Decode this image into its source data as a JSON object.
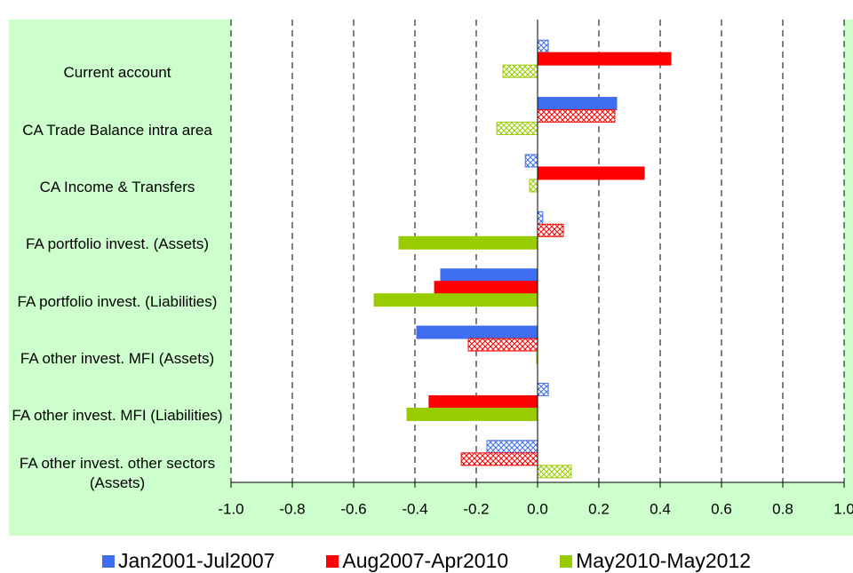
{
  "chart_data": {
    "type": "hbar",
    "categories": [
      "Current account",
      "CA Trade Balance intra area",
      "CA Income & Transfers",
      "FA portfolio invest. (Assets)",
      "FA portfolio invest. (Liabilities)",
      "FA other invest. MFI (Assets)",
      "FA other invest. MFI (Liabilities)",
      "FA other invest. other sectors (Assets)"
    ],
    "series": [
      {
        "name": "Jan2001-Jul2007",
        "color": "#3f6ef0",
        "values": [
          0.035,
          0.258,
          -0.04,
          0.017,
          -0.316,
          -0.394,
          0.035,
          -0.165
        ],
        "hatched": [
          true,
          false,
          true,
          true,
          false,
          false,
          true,
          true
        ]
      },
      {
        "name": "Aug2007-Apr2010",
        "color": "#ff0000",
        "values": [
          0.435,
          0.252,
          0.348,
          0.084,
          -0.336,
          -0.226,
          -0.354,
          -0.249
        ],
        "hatched": [
          false,
          true,
          false,
          true,
          false,
          true,
          false,
          true
        ]
      },
      {
        "name": "May2010-May2012",
        "color": "#99cc00",
        "values": [
          -0.113,
          -0.133,
          -0.026,
          -0.452,
          -0.533,
          -0.003,
          -0.426,
          0.11
        ],
        "hatched": [
          true,
          true,
          true,
          false,
          false,
          false,
          false,
          true
        ]
      }
    ],
    "xlim": [
      -1.0,
      1.0
    ],
    "xticks": [
      {
        "value": -1.0,
        "label": "-1.0"
      },
      -0.8,
      -0.6,
      -0.4,
      -0.2,
      {
        "value": 0.0,
        "label": "0.0"
      },
      0.2,
      0.4,
      0.6,
      0.8,
      {
        "value": 1.0,
        "label": "1.0"
      }
    ],
    "grid": true,
    "legend": "bottom",
    "background": "#ccffcc"
  }
}
